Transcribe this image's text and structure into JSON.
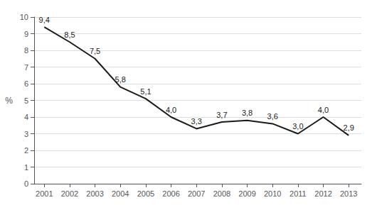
{
  "chart_data": {
    "type": "line",
    "x": [
      2001,
      2002,
      2003,
      2004,
      2005,
      2006,
      2007,
      2008,
      2009,
      2010,
      2011,
      2012,
      2013
    ],
    "values": [
      9.4,
      8.5,
      7.5,
      5.8,
      5.1,
      4.0,
      3.3,
      3.7,
      3.8,
      3.6,
      3.0,
      4.0,
      2.9
    ],
    "value_labels": [
      "9,4",
      "8,5",
      "7,5",
      "5,8",
      "5,1",
      "4,0",
      "3,3",
      "3,7",
      "3,8",
      "3,6",
      "3,0",
      "4,0",
      "2,9"
    ],
    "data_labels": true,
    "color": "#1a1a1a",
    "ylabel": "%",
    "ylim": [
      0,
      10
    ],
    "yticks": [
      0,
      1,
      2,
      3,
      4,
      5,
      6,
      7,
      8,
      9,
      10
    ],
    "xlim": [
      2000.6,
      2013.5
    ],
    "xticks": [
      2001,
      2002,
      2003,
      2004,
      2005,
      2006,
      2007,
      2008,
      2009,
      2010,
      2011,
      2012,
      2013
    ],
    "grid": true
  }
}
